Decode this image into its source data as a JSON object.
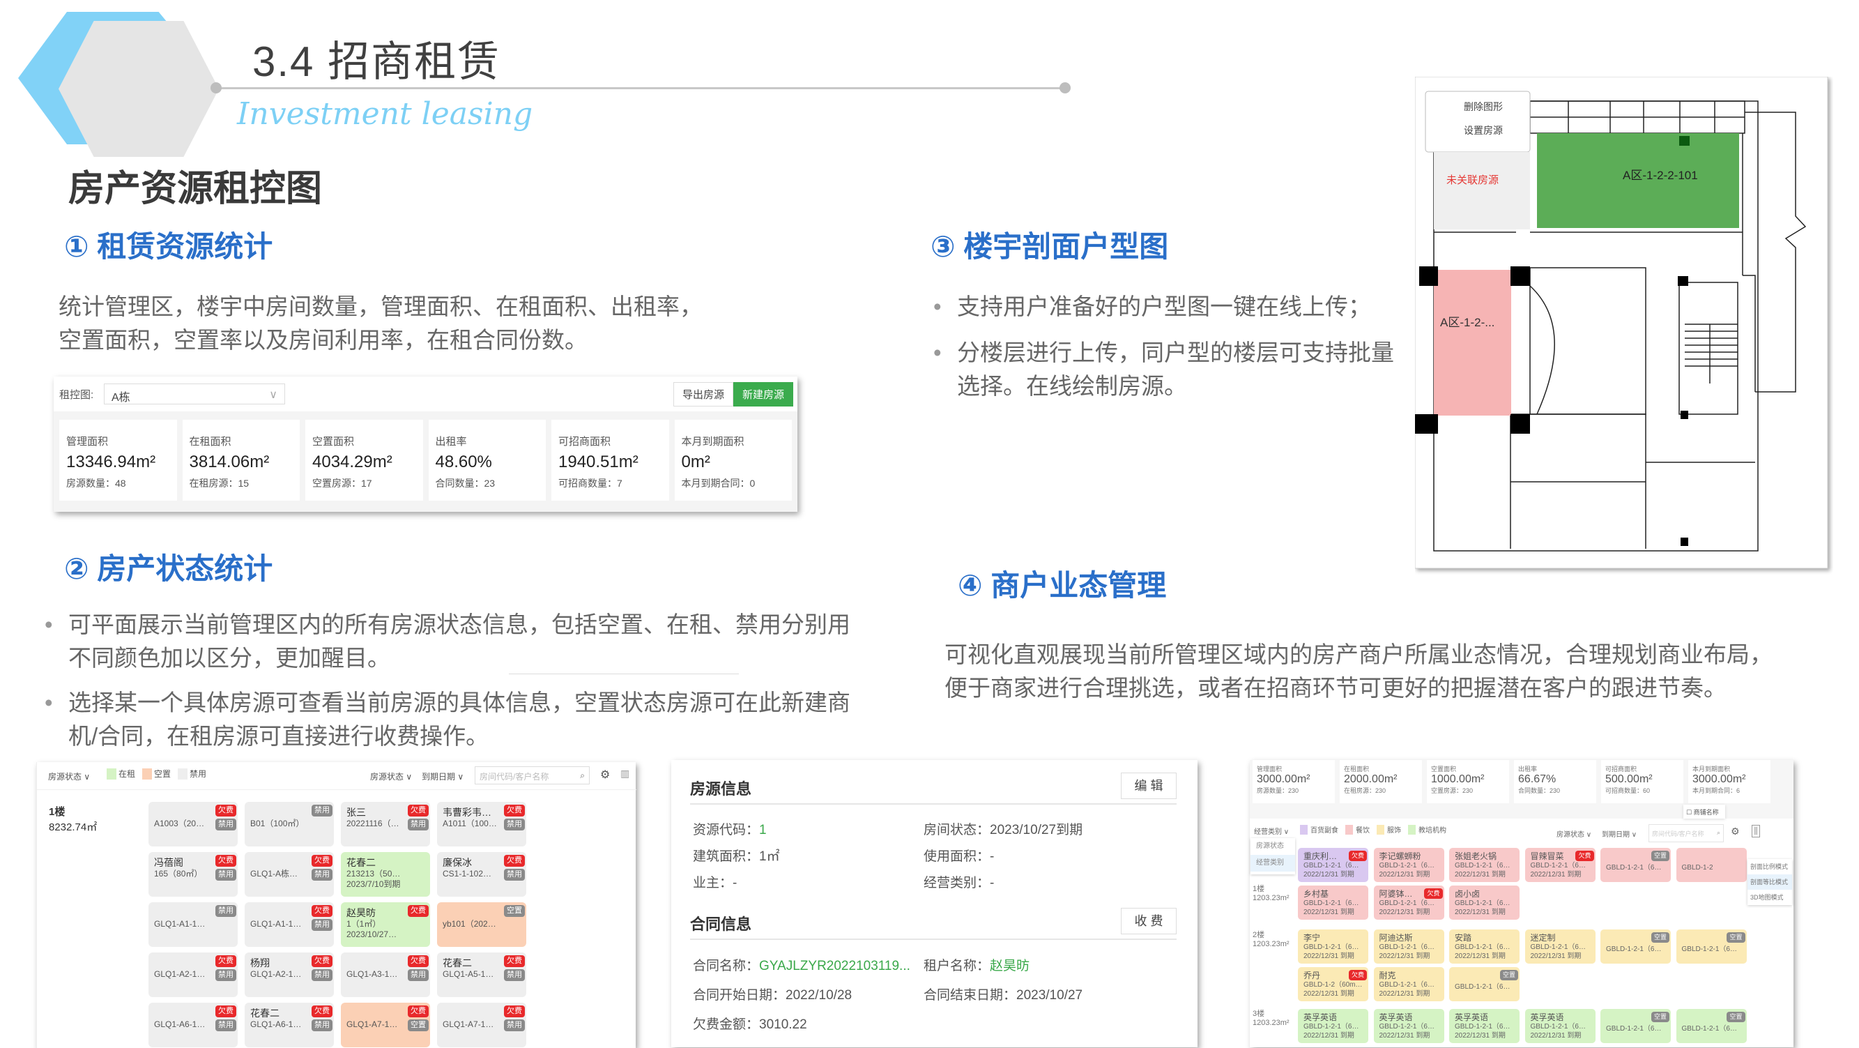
{
  "header": {
    "title": "3.4  招商租赁",
    "subtitle": "Investment leasing",
    "page_heading": "房产资源租控图"
  },
  "colors": {
    "accent_blue": "#2a6fc9",
    "hex_blue": "#81d2f7",
    "rented_green": "#d5f3c4",
    "vacant_peach": "#fbd0b5",
    "disabled_gray": "#eeeeee",
    "arrears_red": "#e8292b",
    "primary_button": "#3bab4d"
  },
  "section1": {
    "heading": "① 租赁资源统计",
    "lines": [
      "统计管理区，楼宇中房间数量，管理面积、在租面积、出租率，",
      "空置面积，空置率以及房间利用率，在租合同份数。"
    ]
  },
  "section2": {
    "heading": "② 房产状态统计",
    "bullets": [
      [
        "可平面展示当前管理区内的所有房源状态信息，包括空置、在租、禁用分别用",
        "不同颜色加以区分，更加醒目。"
      ],
      [
        "选择某一个具体房源可查看当前房源的具体信息，空置状态房源可在此新建商",
        "机/合同，在租房源可直接进行收费操作。"
      ]
    ]
  },
  "section3": {
    "heading": "③ 楼宇剖面户型图",
    "bullets": [
      [
        "支持用户准备好的户型图一键在线上传；"
      ],
      [
        "分楼层进行上传，同户型的楼层可支持批量",
        "选择。在线绘制房源。"
      ]
    ]
  },
  "section4": {
    "heading": "④ 商户业态管理",
    "lines": [
      "可视化直观展现当前所管理区域内的房产商户所属业态情况，合理规划商业布局，",
      "便于商家进行合理挑选，或者在招商环节可更好的把握潜在客户的跟进节奏。"
    ]
  },
  "stats_panel": {
    "select_label": "租控图:",
    "select_value": "A栋",
    "export_button": "导出房源",
    "new_button": "新建房源",
    "cards": [
      {
        "title": "管理面积",
        "value": "13346.94m²",
        "sub": "房源数量：48"
      },
      {
        "title": "在租面积",
        "value": "3814.06m²",
        "sub": "在租房源：15"
      },
      {
        "title": "空置面积",
        "value": "4034.29m²",
        "sub": "空置房源：17"
      },
      {
        "title": "出租率",
        "value": "48.60%",
        "sub": "合同数量：23"
      },
      {
        "title": "可招商面积",
        "value": "1940.51m²",
        "sub": "可招商数量：7"
      },
      {
        "title": "本月到期面积",
        "value": "0m²",
        "sub": "本月到期合同：0"
      }
    ]
  },
  "status_panel": {
    "filter_label": "房源状态",
    "legend": [
      {
        "label": "在租",
        "color": "#d5f3c4"
      },
      {
        "label": "空置",
        "color": "#fbd0b5"
      },
      {
        "label": "禁用",
        "color": "#eeeeee"
      }
    ],
    "status_filter": "房源状态",
    "date_filter": "到期日期",
    "search_placeholder": "房间代码/客户名称",
    "floor": "1楼",
    "floor_area": "8232.74㎡",
    "cards": [
      {
        "state": "disabled",
        "code": "A1003（20㎡）",
        "badges": [
          "欠费",
          "禁用"
        ]
      },
      {
        "state": "disabled",
        "code": "B01（100㎡）",
        "badges": [
          "禁用"
        ]
      },
      {
        "state": "disabled",
        "name": "张三",
        "code": "20221116（1998.76",
        "badges": [
          "欠费",
          "禁用"
        ]
      },
      {
        "state": "disabled",
        "name": "韦曹彩韦曹彩韦曹",
        "code": "A1011（100㎡）",
        "badges": [
          "欠费",
          "禁用"
        ]
      },
      {
        "state": "disabled",
        "name": "冯蓓阁",
        "code": "165（80㎡）",
        "badges": [
          "欠费",
          "禁用"
        ]
      },
      {
        "state": "disabled",
        "code": "GLQ1-A栋（72.7㎡",
        "badges": [
          "欠费",
          "禁用"
        ]
      },
      {
        "state": "rented",
        "name": "花春二",
        "code": "213213（500㎡）",
        "date": "2023/7/10到期",
        "badges": []
      },
      {
        "state": "disabled",
        "name": "廉保冰",
        "code": "CS1-1-102（89㎡）",
        "badges": [
          "欠费",
          "禁用"
        ]
      },
      {
        "state": "disabled",
        "code": "GLQ1-A1-101（347.1...",
        "badges": [
          "禁用"
        ]
      },
      {
        "state": "disabled",
        "code": "GLQ1-A1-102（347",
        "badges": [
          "欠费",
          "禁用"
        ]
      },
      {
        "state": "rented",
        "name": "赵昊昉",
        "code": "1（1㎡）",
        "date": "2023/10/27到期",
        "badges": [
          "欠费"
        ]
      },
      {
        "state": "vacant",
        "code": "yb101（202㎡）",
        "badges": [
          "空置"
        ]
      },
      {
        "state": "disabled",
        "code": "GLQ1-A2-101（347",
        "badges": [
          "欠费",
          "禁用"
        ]
      },
      {
        "state": "disabled",
        "name": "杨翔",
        "code": "GLQ1-A2-102（347",
        "badges": [
          "欠费",
          "禁用"
        ]
      },
      {
        "state": "disabled",
        "code": "GLQ1-A3-102（329",
        "badges": [
          "欠费",
          "禁用"
        ]
      },
      {
        "state": "disabled",
        "name": "花春二",
        "code": "GLQ1-A5-101（329",
        "badges": [
          "欠费",
          "禁用"
        ]
      },
      {
        "state": "disabled",
        "code": "GLQ1-A6-101（329",
        "badges": [
          "欠费",
          "禁用"
        ]
      },
      {
        "state": "disabled",
        "name": "花春二",
        "code": "GLQ1-A6-102（329",
        "badges": [
          "欠费",
          "禁用"
        ]
      },
      {
        "state": "vacant",
        "code": "GLQ1-A7-101（329",
        "badges": [
          "欠费",
          "空置"
        ]
      },
      {
        "state": "disabled",
        "code": "GLQ1-A7-102（329",
        "badges": [
          "欠费",
          "禁用"
        ]
      }
    ]
  },
  "detail_panel": {
    "room_title": "房源信息",
    "edit_button": "编 辑",
    "room_fields": [
      {
        "label": "资源代码：",
        "value": "1",
        "green": true
      },
      {
        "label": "房间状态：",
        "value": "2023/10/27到期"
      },
      {
        "label": "建筑面积：",
        "value": "1㎡"
      },
      {
        "label": "使用面积：",
        "value": "-"
      },
      {
        "label": "业主：",
        "value": "-"
      },
      {
        "label": "经营类别：",
        "value": "-"
      }
    ],
    "contract_title": "合同信息",
    "charge_button": "收 费",
    "contract_fields": [
      {
        "label": "合同名称：",
        "value": "GYAJLZYR2022103119...",
        "green": true
      },
      {
        "label": "租户名称：",
        "value": "赵昊昉",
        "green": true
      },
      {
        "label": "合同开始日期：",
        "value": "2022/10/28"
      },
      {
        "label": "合同结束日期：",
        "value": "2023/10/27"
      },
      {
        "label": "欠费金额：",
        "value": "3010.22"
      }
    ]
  },
  "floorplan": {
    "menu": [
      "删除图形",
      "设置房源"
    ],
    "unlinked_label": "未关联房源",
    "room_green": "A区-1-2-2-101",
    "room_pink": "A区-1-2-..."
  },
  "business_panel": {
    "stats": [
      {
        "title": "管理面积",
        "value": "3000.00m²",
        "sub": "房源数量：230"
      },
      {
        "title": "在租面积",
        "value": "2000.00m²",
        "sub": "在租房源：230"
      },
      {
        "title": "空置面积",
        "value": "1000.00m²",
        "sub": "空置房源：230"
      },
      {
        "title": "出租率",
        "value": "66.67%",
        "sub": "合同数量：230"
      },
      {
        "title": "可招商面积",
        "value": "500.00m²",
        "sub": "可招商数量：60"
      },
      {
        "title": "本月到期面积",
        "value": "3000.00m²",
        "sub": "本月到期合同：6"
      }
    ],
    "category_filter": "经营类别",
    "dropdown_options": [
      "房源状态",
      "经营类别"
    ],
    "legend": [
      {
        "label": "百货副食",
        "color": "#d9c8f0"
      },
      {
        "label": "餐饮",
        "color": "#f8c9c9"
      },
      {
        "label": "服饰",
        "color": "#fbeab5"
      },
      {
        "label": "教培机构",
        "color": "#d5f3c4"
      }
    ],
    "status_filter": "房源状态",
    "date_filter": "到期日期",
    "search_placeholder": "房间代码/客户名称",
    "checkbox_label": "商铺名称",
    "view_modes": [
      "剖面比例模式",
      "剖面等比模式",
      "3D地图模式"
    ],
    "floors": [
      {
        "name": "1楼",
        "area": "1203.23m²"
      },
      {
        "name": "2楼",
        "area": "1203.23m²"
      },
      {
        "name": "3楼",
        "area": "1203.23m²"
      }
    ],
    "cards": [
      {
        "cat": "grocery",
        "row": 0,
        "col": 0,
        "name": "重庆利来食品公",
        "code": "GBLD-1-2-1（60m²）",
        "date": "2022/12/31 到期",
        "badge": "欠费"
      },
      {
        "cat": "food",
        "row": 0,
        "col": 1,
        "name": "李记螺蛳粉",
        "code": "GBLD-1-2-1（60m²）",
        "date": "2022/12/31 到期"
      },
      {
        "cat": "food",
        "row": 0,
        "col": 2,
        "name": "张姐老火锅",
        "code": "GBLD-1-2-1（60m²）",
        "date": "2022/12/31 到期"
      },
      {
        "cat": "food",
        "row": 0,
        "col": 3,
        "name": "冒辣冒菜",
        "code": "GBLD-1-2-1（60m²）",
        "date": "2022/12/31 到期",
        "badge": "欠费"
      },
      {
        "cat": "food",
        "row": 0,
        "col": 4,
        "code": "GBLD-1-2-1（60m²）",
        "badge": "空置"
      },
      {
        "cat": "food",
        "row": 0,
        "col": 5,
        "code": "GBLD-1-2"
      },
      {
        "cat": "food",
        "row": 1,
        "col": 0,
        "name": "乡村基",
        "code": "GBLD-1-2-1（60m²）",
        "date": "2022/12/31 到期"
      },
      {
        "cat": "food",
        "row": 1,
        "col": 1,
        "name": "阿婆钵钵鸡",
        "code": "GBLD-1-2-1（60m²）",
        "date": "2022/12/31 到期",
        "badge": "欠费"
      },
      {
        "cat": "food",
        "row": 1,
        "col": 2,
        "name": "卤小卤",
        "code": "GBLD-1-2-1（60m²）",
        "date": "2022/12/31 到期"
      },
      {
        "cat": "apparel",
        "row": 2,
        "col": 0,
        "name": "李宁",
        "code": "GBLD-1-2-1（60m²）",
        "date": "2022/12/31 到期"
      },
      {
        "cat": "apparel",
        "row": 2,
        "col": 1,
        "name": "阿迪达斯",
        "code": "GBLD-1-2-1（60m²）",
        "date": "2022/12/31 到期"
      },
      {
        "cat": "apparel",
        "row": 2,
        "col": 2,
        "name": "安踏",
        "code": "GBLD-1-2-1（60m²）",
        "date": "2022/12/31 到期"
      },
      {
        "cat": "apparel",
        "row": 2,
        "col": 3,
        "name": "迷定制",
        "code": "GBLD-1-2-1（60m²）",
        "date": "2022/12/31 到期"
      },
      {
        "cat": "apparel",
        "row": 2,
        "col": 4,
        "code": "GBLD-1-2-1（60m²）",
        "badge": "空置"
      },
      {
        "cat": "apparel",
        "row": 2,
        "col": 5,
        "code": "GBLD-1-2-1（60m²）",
        "badge": "空置"
      },
      {
        "cat": "apparel",
        "row": 3,
        "col": 0,
        "name": "乔丹",
        "code": "GBLD-1-2（60m²）",
        "date": "2022/12/31 到期",
        "badge": "欠费"
      },
      {
        "cat": "apparel",
        "row": 3,
        "col": 1,
        "name": "耐克",
        "code": "GBLD-1-2-1（60m²）",
        "date": "2022/12/31 到期"
      },
      {
        "cat": "apparel",
        "row": 3,
        "col": 2,
        "code": "GBLD-1-2-1（60m²）",
        "badge": "空置"
      },
      {
        "cat": "edu",
        "row": 4,
        "col": 0,
        "name": "英孚英语",
        "code": "GBLD-1-2-1（60m²）",
        "date": "2022/12/31 到期"
      },
      {
        "cat": "edu",
        "row": 4,
        "col": 1,
        "name": "英孚英语",
        "code": "GBLD-1-2-1（60m²）",
        "date": "2022/12/31 到期"
      },
      {
        "cat": "edu",
        "row": 4,
        "col": 2,
        "name": "英孚英语",
        "code": "GBLD-1-2-1（60m²）",
        "date": "2022/12/31 到期"
      },
      {
        "cat": "edu",
        "row": 4,
        "col": 3,
        "name": "英孚英语",
        "code": "GBLD-1-2-1（60m²）",
        "date": "2022/12/31 到期"
      },
      {
        "cat": "edu",
        "row": 4,
        "col": 4,
        "code": "GBLD-1-2-1（60m²）",
        "badge": "空置"
      },
      {
        "cat": "edu",
        "row": 4,
        "col": 5,
        "code": "GBLD-1-2-1（60m²）",
        "badge": "空置"
      }
    ]
  }
}
